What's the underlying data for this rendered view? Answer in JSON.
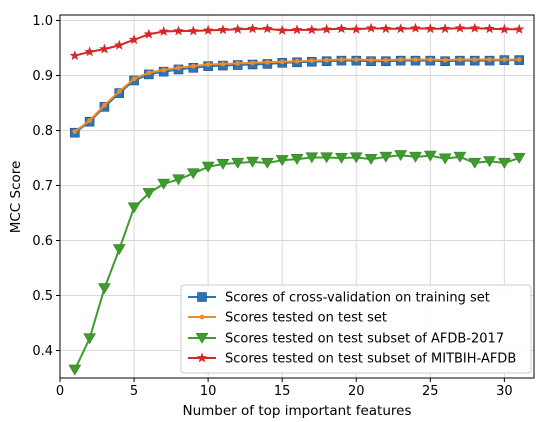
{
  "chart_data": {
    "type": "line",
    "xlabel": "Number of top important features",
    "ylabel": "MCC Score",
    "xlim": [
      0,
      32
    ],
    "ylim": [
      0.35,
      1.01
    ],
    "x_ticks": [
      0,
      5,
      10,
      15,
      20,
      25,
      30
    ],
    "y_ticks": [
      0.4,
      0.5,
      0.6,
      0.7,
      0.8,
      0.9,
      1.0
    ],
    "y_tick_labels": [
      "0.4",
      "0.5",
      "0.6",
      "0.7",
      "0.8",
      "0.9",
      "1.0"
    ],
    "grid": true,
    "legend_position": "bottom-right",
    "x": [
      1,
      2,
      3,
      4,
      5,
      6,
      7,
      8,
      9,
      10,
      11,
      12,
      13,
      14,
      15,
      16,
      17,
      18,
      19,
      20,
      21,
      22,
      23,
      24,
      25,
      26,
      27,
      28,
      29,
      30,
      31
    ],
    "series": [
      {
        "name": "Scores of cross-validation on training set",
        "color": "#2e74b5",
        "marker": "square",
        "values": [
          0.796,
          0.816,
          0.843,
          0.868,
          0.891,
          0.902,
          0.907,
          0.911,
          0.914,
          0.917,
          0.918,
          0.919,
          0.92,
          0.921,
          0.923,
          0.924,
          0.925,
          0.926,
          0.927,
          0.927,
          0.926,
          0.926,
          0.927,
          0.927,
          0.927,
          0.926,
          0.927,
          0.927,
          0.927,
          0.928,
          0.928
        ]
      },
      {
        "name": "Scores tested on test set",
        "color": "#f08c24",
        "marker": "circle",
        "values": [
          0.798,
          0.818,
          0.846,
          0.871,
          0.894,
          0.905,
          0.91,
          0.914,
          0.917,
          0.92,
          0.921,
          0.922,
          0.923,
          0.924,
          0.925,
          0.926,
          0.927,
          0.928,
          0.929,
          0.929,
          0.928,
          0.928,
          0.929,
          0.929,
          0.929,
          0.928,
          0.929,
          0.929,
          0.929,
          0.929,
          0.929
        ]
      },
      {
        "name": "Scores tested on test subset of AFDB-2017",
        "color": "#3f9b2e",
        "marker": "triangle-down",
        "values": [
          0.365,
          0.422,
          0.513,
          0.584,
          0.66,
          0.686,
          0.703,
          0.711,
          0.722,
          0.734,
          0.739,
          0.741,
          0.743,
          0.741,
          0.746,
          0.748,
          0.751,
          0.751,
          0.75,
          0.751,
          0.748,
          0.752,
          0.755,
          0.752,
          0.754,
          0.749,
          0.752,
          0.741,
          0.744,
          0.741,
          0.75
        ]
      },
      {
        "name": "Scores tested on test subset of MITBIH-AFDB",
        "color": "#d62728",
        "marker": "star",
        "values": [
          0.936,
          0.943,
          0.948,
          0.955,
          0.965,
          0.975,
          0.98,
          0.981,
          0.981,
          0.982,
          0.983,
          0.984,
          0.985,
          0.985,
          0.982,
          0.983,
          0.983,
          0.984,
          0.985,
          0.984,
          0.986,
          0.985,
          0.985,
          0.986,
          0.985,
          0.985,
          0.986,
          0.986,
          0.985,
          0.984,
          0.984
        ]
      }
    ]
  }
}
